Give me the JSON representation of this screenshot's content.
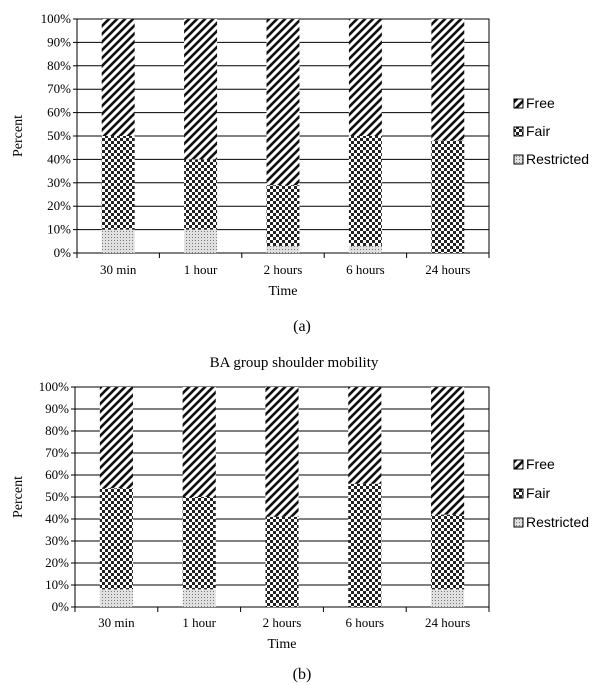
{
  "chart_data": [
    {
      "type": "bar",
      "stacked": true,
      "title": "",
      "caption": "(a)",
      "xlabel": "Time",
      "ylabel": "Percent",
      "categories": [
        "30 min",
        "1 hour",
        "2 hours",
        "6 hours",
        "24 hours"
      ],
      "yticks": [
        "0%",
        "10%",
        "20%",
        "30%",
        "40%",
        "50%",
        "60%",
        "70%",
        "80%",
        "90%",
        "100%"
      ],
      "ylim": [
        0,
        100
      ],
      "grid": true,
      "legend_position": "right",
      "series": [
        {
          "name": "Restricted",
          "pattern": "dots",
          "values": [
            10,
            10,
            3,
            3,
            0
          ]
        },
        {
          "name": "Fair",
          "pattern": "checker",
          "values": [
            40,
            30,
            26,
            47,
            48
          ]
        },
        {
          "name": "Free",
          "pattern": "diagonal",
          "values": [
            50,
            60,
            71,
            50,
            52
          ]
        }
      ],
      "legend_order": [
        "Free",
        "Fair",
        "Restricted"
      ],
      "legend_labels": {
        "Free": "Free",
        "Fair": "Fair",
        "Restricted": "Restricted"
      }
    },
    {
      "type": "bar",
      "stacked": true,
      "title": "BA group shoulder mobility",
      "caption": "(b)",
      "xlabel": "Time",
      "ylabel": "Percent",
      "categories": [
        "30 min",
        "1 hour",
        "2 hours",
        "6 hours",
        "24 hours"
      ],
      "yticks": [
        "0%",
        "10%",
        "20%",
        "30%",
        "40%",
        "50%",
        "60%",
        "70%",
        "80%",
        "90%",
        "100%"
      ],
      "ylim": [
        0,
        100
      ],
      "grid": true,
      "legend_position": "right",
      "series": [
        {
          "name": "Restricted",
          "pattern": "dots",
          "values": [
            8,
            8,
            0,
            0,
            8
          ]
        },
        {
          "name": "Fair",
          "pattern": "checker",
          "values": [
            46,
            42,
            41,
            56,
            34
          ]
        },
        {
          "name": "Free",
          "pattern": "diagonal",
          "values": [
            46,
            50,
            59,
            44,
            58
          ]
        }
      ],
      "legend_order": [
        "Free",
        "Fair",
        "Restricted"
      ],
      "legend_labels": {
        "Free": "Free",
        "Fair": "Fair",
        "Restricted": "Restricted"
      }
    }
  ]
}
